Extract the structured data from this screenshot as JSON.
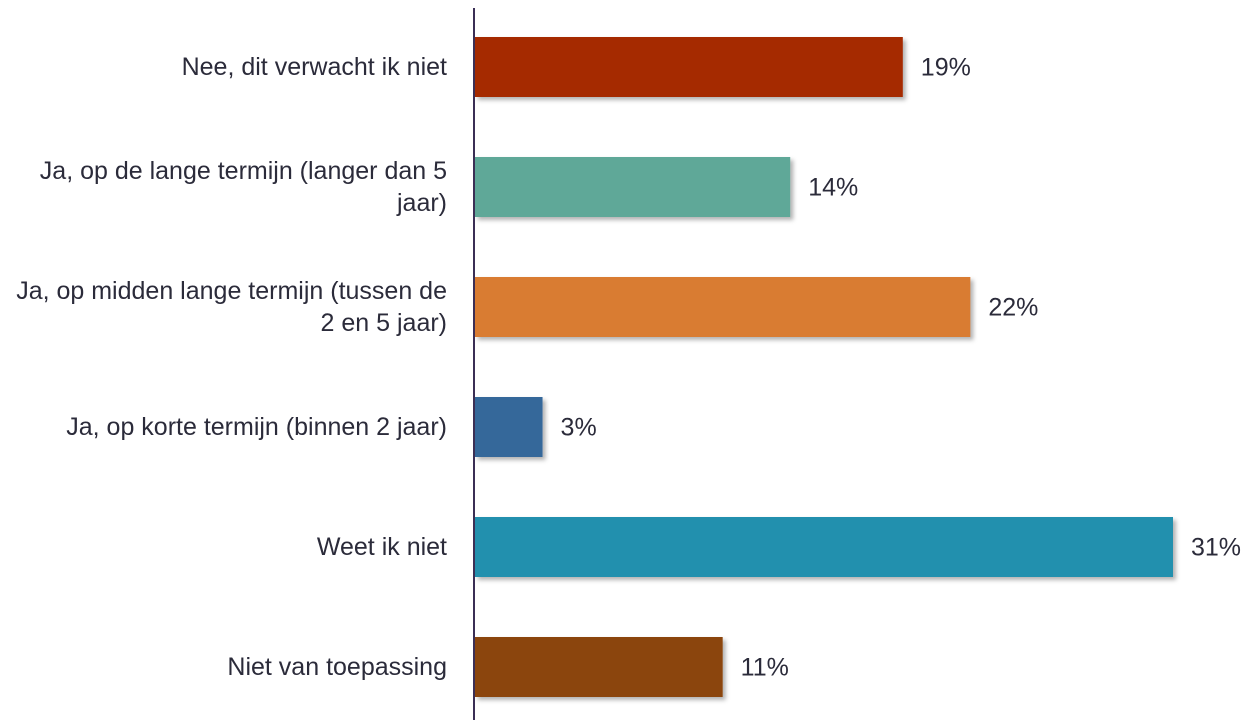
{
  "chart_data": {
    "type": "barh",
    "categories": [
      "Nee, dit verwacht ik niet",
      "Ja, op de lange termijn (langer dan 5 jaar)",
      "Ja, op midden lange termijn (tussen de 2 en 5 jaar)",
      "Ja, op korte termijn (binnen 2 jaar)",
      "Weet ik niet",
      "Niet van toepassing"
    ],
    "values": [
      19,
      14,
      22,
      3,
      31,
      11
    ],
    "value_labels": [
      "19%",
      "14%",
      "22%",
      "3%",
      "31%",
      "11%"
    ],
    "colors": [
      "#a52a00",
      "#5fa898",
      "#d97b32",
      "#34689a",
      "#2190ae",
      "#8b4509"
    ],
    "xlim": [
      0,
      31
    ]
  }
}
